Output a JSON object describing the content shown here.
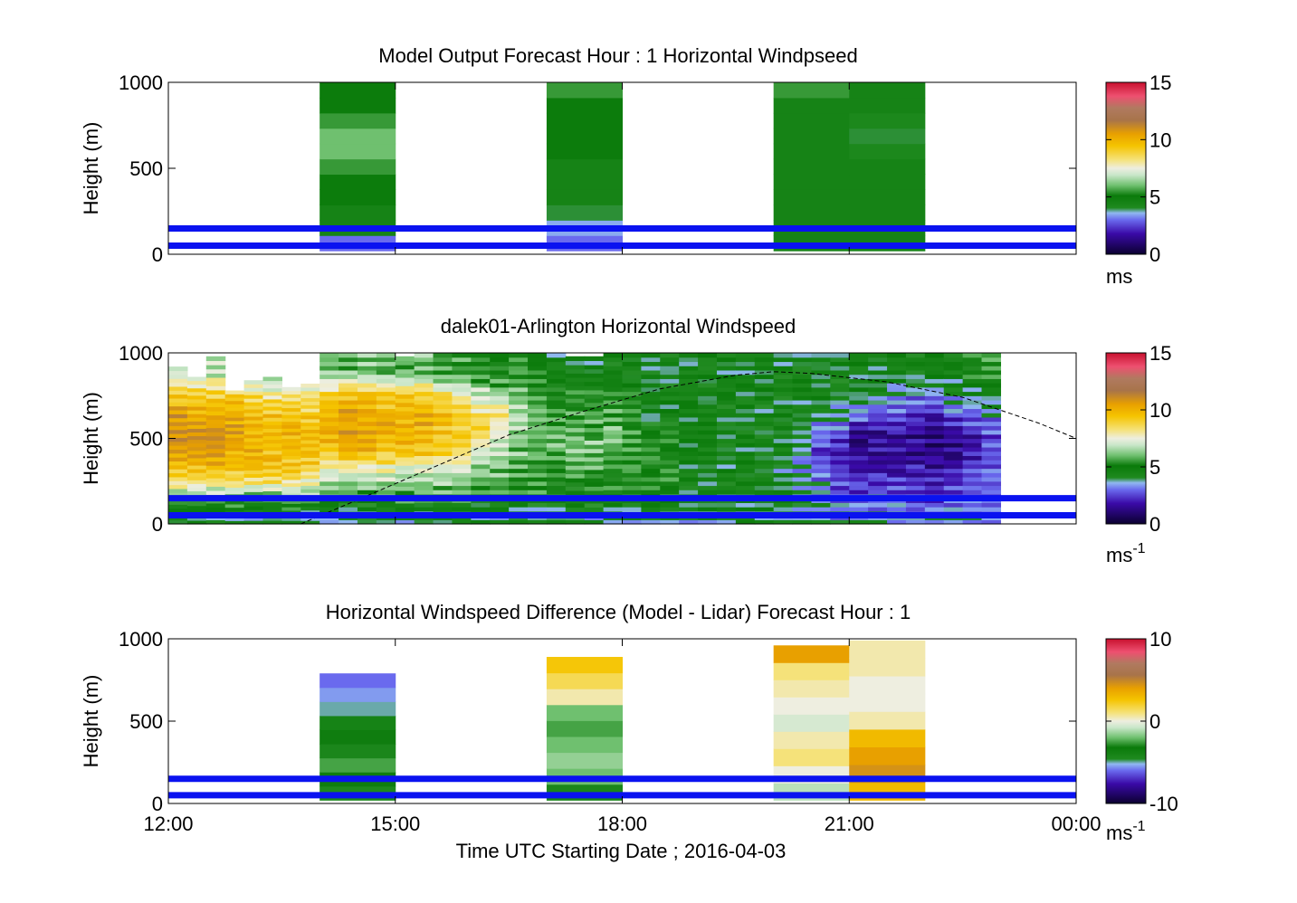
{
  "chart_data": [
    {
      "type": "heatmap",
      "title": "Model Output   Forecast Hour : 1 Horizontal Windpseed",
      "xlabel": "",
      "ylabel": "Height (m)",
      "xlim": [
        12,
        24
      ],
      "ylim": [
        0,
        1000
      ],
      "yticks": [
        0,
        500,
        1000
      ],
      "colorbar": {
        "range": [
          0,
          15
        ],
        "ticks": [
          0,
          5,
          10,
          15
        ],
        "unit": "ms",
        "unit_sup": ""
      },
      "columns": [
        {
          "x": 14,
          "width": 1,
          "ymax": 1000,
          "ymin": 20,
          "values": [
            3,
            4.5,
            4.5,
            5,
            5,
            5.5,
            6,
            6,
            5.5,
            5,
            5
          ]
        },
        {
          "x": 17,
          "width": 1,
          "ymax": 1000,
          "ymin": 20,
          "values": [
            3,
            3.5,
            4,
            4.5,
            4.5,
            4.5,
            5,
            5,
            5,
            5,
            5.5
          ]
        },
        {
          "x": 20,
          "width": 1,
          "ymax": 1000,
          "ymin": 20,
          "values": [
            4.5,
            4.5,
            4.5,
            4.5,
            4.5,
            4.5,
            4.5,
            4.5,
            4.5,
            4.5,
            5.5
          ]
        },
        {
          "x": 21,
          "width": 1,
          "ymax": 1000,
          "ymin": 20,
          "values": [
            4.5,
            4.5,
            4.5,
            4.5,
            4.5,
            4.5,
            4.2,
            4,
            4.2,
            4.5,
            4.5
          ]
        }
      ],
      "reference_lines_m": [
        50,
        150
      ]
    },
    {
      "type": "heatmap",
      "title": "dalek01-Arlington  Horizontal Windspeed",
      "xlabel": "",
      "ylabel": "Height (m)",
      "xlim": [
        12,
        24
      ],
      "ylim": [
        0,
        1000
      ],
      "yticks": [
        0,
        500,
        1000
      ],
      "colorbar": {
        "range": [
          0,
          15
        ],
        "ticks": [
          0,
          5,
          10,
          15
        ],
        "unit": "ms",
        "unit_sup": "-1"
      },
      "column_x": [
        12,
        12.25,
        12.5,
        12.75,
        13,
        13.25,
        13.5,
        13.75,
        14,
        14.25,
        14.5,
        14.75,
        15,
        15.25,
        15.5,
        15.75,
        16,
        16.25,
        16.5,
        16.75,
        17,
        17.25,
        17.5,
        17.75,
        18,
        18.25,
        18.5,
        18.75,
        19,
        19.25,
        19.5,
        19.75,
        20,
        20.25,
        20.5,
        20.75,
        21,
        21.25,
        21.5,
        21.75,
        22,
        22.25,
        22.5,
        22.75
      ],
      "column_width_h": 0.25,
      "column_top_m": [
        920,
        860,
        980,
        780,
        840,
        860,
        800,
        820,
        1000,
        1000,
        1000,
        1000,
        980,
        1000,
        1000,
        1000,
        1000,
        1000,
        1000,
        1000,
        1000,
        980,
        980,
        1000,
        1000,
        1000,
        1000,
        1000,
        1000,
        1000,
        1000,
        1000,
        1000,
        1000,
        1000,
        1000,
        1000,
        1000,
        1000,
        1000,
        1000,
        1000,
        1000,
        1000
      ],
      "column_profiles_ms": [
        [
          4,
          6,
          9,
          10,
          11,
          10.5,
          9,
          7
        ],
        [
          4,
          6,
          9,
          10.5,
          11,
          10,
          9,
          7
        ],
        [
          4,
          6,
          9,
          10.5,
          11,
          10,
          9,
          7
        ],
        [
          4,
          6,
          9,
          10,
          10.5,
          10,
          9,
          6
        ],
        [
          4,
          6,
          9,
          10,
          10,
          9.5,
          8.5,
          6
        ],
        [
          4,
          6,
          9,
          9.5,
          10,
          9.5,
          8,
          6
        ],
        [
          4,
          6,
          9,
          9.5,
          10,
          9.5,
          8,
          6
        ],
        [
          4,
          6,
          8.5,
          9.5,
          10,
          9,
          8,
          6
        ],
        [
          4,
          5.5,
          7,
          9,
          10,
          10,
          9,
          6
        ],
        [
          4,
          5.5,
          7,
          9.5,
          10.5,
          10.5,
          9.5,
          6
        ],
        [
          4,
          5.5,
          7,
          9.5,
          10.5,
          10.5,
          9.5,
          6
        ],
        [
          4,
          5.5,
          7,
          9,
          10,
          10,
          9,
          6
        ],
        [
          4,
          5.5,
          6.5,
          9,
          10,
          10,
          9,
          6
        ],
        [
          4,
          5.5,
          6.5,
          9,
          10,
          10,
          9,
          6
        ],
        [
          4,
          5.5,
          6.5,
          8.5,
          9.5,
          9.5,
          8.5,
          5.5
        ],
        [
          4,
          5.5,
          6.5,
          8,
          9,
          9,
          8,
          5.5
        ],
        [
          4,
          5,
          6,
          7,
          8.5,
          8.5,
          7,
          5
        ],
        [
          4,
          5,
          6,
          6.5,
          7.5,
          8,
          6.5,
          5
        ],
        [
          4,
          5,
          5.5,
          6,
          6.5,
          6.5,
          6,
          5
        ],
        [
          4,
          5,
          5.5,
          5.5,
          6,
          6,
          5.5,
          5
        ],
        [
          4,
          5,
          5.5,
          5.5,
          6,
          5.5,
          5,
          4.5
        ],
        [
          4,
          5,
          5.5,
          6,
          6,
          5.5,
          5,
          4.5
        ],
        [
          4,
          5,
          5.5,
          6,
          6,
          5.5,
          5,
          4.5
        ],
        [
          4,
          5,
          5,
          5.5,
          6,
          5.5,
          5,
          4.5
        ],
        [
          4,
          5,
          5,
          5.5,
          5.5,
          5,
          5,
          4.5
        ],
        [
          4,
          5,
          5,
          5,
          5,
          4.5,
          4.5,
          4.5
        ],
        [
          4,
          5,
          5,
          5,
          5,
          4.5,
          4.5,
          4.5
        ],
        [
          4,
          4.5,
          4.5,
          4.5,
          4.5,
          4.5,
          4.5,
          4.5
        ],
        [
          4,
          4.5,
          4.5,
          4.5,
          4.5,
          4.5,
          4.5,
          4.5
        ],
        [
          4,
          4.5,
          4.5,
          4.5,
          4.5,
          4.5,
          4.5,
          4.5
        ],
        [
          4,
          4.5,
          4.5,
          4.5,
          4.5,
          4.5,
          4.5,
          4.5
        ],
        [
          4,
          4.5,
          4.5,
          4.5,
          4.5,
          4.5,
          4.5,
          4.5
        ],
        [
          4,
          4.5,
          4,
          4,
          4.5,
          4.5,
          4.5,
          4.5
        ],
        [
          4,
          4,
          3.5,
          3.5,
          4,
          4.5,
          4.5,
          4.5
        ],
        [
          4,
          3.5,
          3,
          2.5,
          3,
          4,
          4.5,
          4.5
        ],
        [
          3.5,
          3,
          2.5,
          2,
          2.5,
          3.5,
          4.5,
          4.5
        ],
        [
          3.5,
          2.5,
          2,
          1.5,
          1.5,
          3,
          4.5,
          4.5
        ],
        [
          3.5,
          3,
          2,
          1.5,
          1.5,
          2.5,
          4,
          4.5
        ],
        [
          3.5,
          3,
          2,
          1.5,
          1.5,
          2.5,
          4,
          4.5
        ],
        [
          3.5,
          2.5,
          2,
          1.5,
          1.5,
          2,
          3.5,
          4.5
        ],
        [
          3.5,
          2.5,
          2,
          1.5,
          1,
          2,
          3.5,
          4.5
        ],
        [
          3.5,
          2.5,
          2,
          1.5,
          1.5,
          2.5,
          4,
          4.5
        ],
        [
          3.5,
          3,
          2.5,
          2,
          2,
          3,
          4,
          5
        ],
        [
          3.5,
          3,
          3,
          2.5,
          2.5,
          3.5,
          4.5,
          5.5
        ]
      ],
      "profile_heights_m": [
        40,
        160,
        280,
        400,
        520,
        640,
        760,
        880
      ],
      "dashed_curve": {
        "x": [
          13.75,
          14.5,
          15.5,
          16.5,
          17.5,
          18.5,
          19.5,
          20,
          20.5,
          21.5,
          22.5,
          23.5,
          24
        ],
        "y_m": [
          0,
          140,
          330,
          520,
          660,
          790,
          870,
          890,
          880,
          830,
          740,
          590,
          500
        ]
      },
      "reference_lines_m": [
        50,
        150
      ]
    },
    {
      "type": "heatmap",
      "title": "Horizontal Windspeed Difference (Model - Lidar) Forecast Hour : 1",
      "xlabel": "Time UTC  Starting Date ; 2016-04-03",
      "ylabel": "Height (m)",
      "xlim": [
        12,
        24
      ],
      "ylim": [
        0,
        1000
      ],
      "xticks": [
        12,
        15,
        18,
        21,
        24
      ],
      "xticklabels": [
        "12:00",
        "15:00",
        "18:00",
        "21:00",
        "00:00"
      ],
      "yticks": [
        0,
        500,
        1000
      ],
      "colorbar": {
        "range": [
          -10,
          10
        ],
        "ticks": [
          -10,
          0,
          10
        ],
        "unit": "ms",
        "unit_sup": "-1"
      },
      "columns": [
        {
          "x": 14,
          "width": 1,
          "ymax": 790,
          "ymin": 20,
          "values": [
            -4.5,
            -3.5,
            -2.5,
            -3,
            -3.5,
            -4,
            -5,
            -5.5,
            -6
          ]
        },
        {
          "x": 17,
          "width": 1,
          "ymax": 890,
          "ymin": 20,
          "values": [
            -3,
            -2,
            -1.5,
            -2,
            -2.5,
            -2,
            0.5,
            1.5,
            2.5
          ]
        },
        {
          "x": 20,
          "width": 1,
          "ymax": 960,
          "ymin": 20,
          "values": [
            -1,
            0,
            1,
            0.5,
            -0.5,
            0,
            0.5,
            1,
            4
          ]
        },
        {
          "x": 21,
          "width": 1,
          "ymax": 990,
          "ymin": 20,
          "values": [
            3,
            4.5,
            4,
            3,
            0.5,
            0,
            0,
            0.5,
            0.5
          ]
        }
      ],
      "reference_lines_m": [
        50,
        150
      ]
    }
  ]
}
